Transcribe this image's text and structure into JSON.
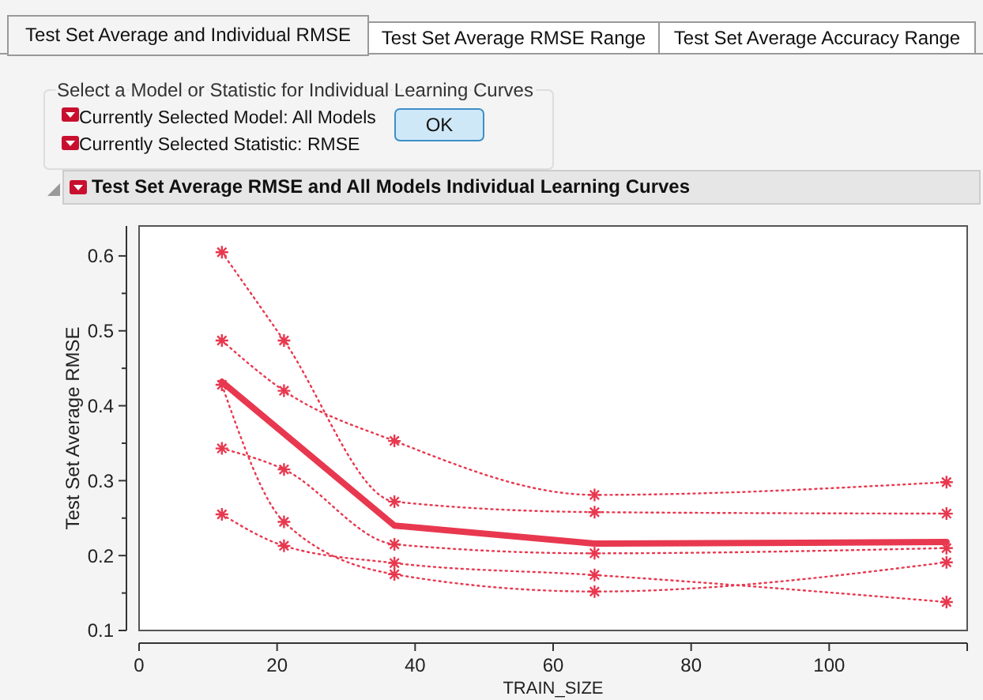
{
  "chart_data": {
    "type": "line",
    "title": "Test Set Average RMSE and All Models Individual Learning Curves",
    "xlabel": "TRAIN_SIZE",
    "ylabel": "Test Set Average RMSE",
    "annotations": [
      "Test Set Average and Individual RMSE",
      "Test Set Average RMSE Range",
      "Test Set Average Accuracy Range",
      "Select a Model or Statistic for Individual Learning Curves",
      "Currently Selected Model: All Models",
      "Currently Selected Statistic: RMSE",
      "OK"
    ],
    "x": [
      12,
      21,
      37,
      66,
      117
    ],
    "series": [
      {
        "color": "#e8384f",
        "values": [
          0.605,
          0.487,
          0.272,
          0.258,
          0.256
        ],
        "marker": "cross",
        "line_style": "dotted"
      },
      {
        "color": "#e8384f",
        "values": [
          0.487,
          0.42,
          0.353,
          0.281,
          0.298
        ],
        "marker": "cross",
        "line_style": "dotted"
      },
      {
        "color": "#e8384f",
        "values": [
          0.428,
          0.245,
          0.175,
          0.152,
          0.191
        ],
        "marker": "cross",
        "line_style": "dotted"
      },
      {
        "color": "#e8384f",
        "values": [
          0.343,
          0.315,
          0.215,
          0.203,
          0.21
        ],
        "marker": "cross",
        "line_style": "dotted"
      },
      {
        "color": "#e8384f",
        "values": [
          0.255,
          0.213,
          0.19,
          0.174,
          0.138
        ],
        "marker": "cross",
        "line_style": "dotted"
      },
      {
        "color": "#e8384f",
        "x": [
          12,
          37,
          66,
          117
        ],
        "values": [
          0.432,
          0.24,
          0.216,
          0.218
        ],
        "marker": "none",
        "line_style": "solid"
      }
    ],
    "xlim": [
      0,
      120
    ],
    "xticks": [
      0,
      20,
      40,
      60,
      80,
      100
    ],
    "ylim": [
      0.1,
      0.64
    ],
    "yticks": [
      0.1,
      {
        "value": 0.15,
        "label": null
      },
      0.2,
      {
        "value": 0.25,
        "label": null
      },
      0.3,
      {
        "value": 0.35,
        "label": null
      },
      0.4,
      {
        "value": 0.45,
        "label": null
      },
      0.5,
      {
        "value": 0.55,
        "label": null
      },
      0.6
    ],
    "grid": false
  }
}
